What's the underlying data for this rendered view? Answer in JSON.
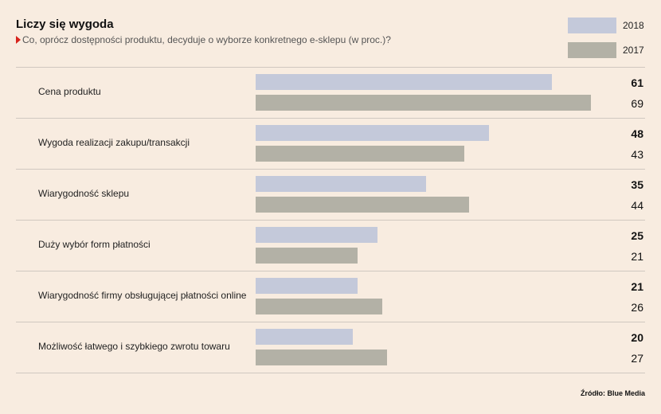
{
  "title": "Liczy się wygoda",
  "subtitle": "Co, oprócz dostępności produktu, decyduje o wyborze konkretnego e-sklepu (w proc.)?",
  "source": "Źródło: Blue Media",
  "colors": {
    "s2018": "#c4c9da",
    "s2017": "#b3b1a6",
    "accent": "#d7231c"
  },
  "chart_data": {
    "type": "bar",
    "orientation": "horizontal",
    "title": "Liczy się wygoda",
    "subtitle": "Co, oprócz dostępności produktu, decyduje o wyborze konkretnego e-sklepu (w proc.)?",
    "categories": [
      "Cena produktu",
      "Wygoda realizacji zakupu/transakcji",
      "Wiarygodność sklepu",
      "Duży wybór form płatności",
      "Wiarygodność firmy obsługującej płatności online",
      "Możliwość łatwego i szybkiego zwrotu towaru"
    ],
    "series": [
      {
        "name": "2018",
        "values": [
          61,
          48,
          35,
          25,
          21,
          20
        ]
      },
      {
        "name": "2017",
        "values": [
          69,
          43,
          44,
          21,
          26,
          27
        ]
      }
    ],
    "xlim": [
      0,
      70
    ],
    "legend": "top-right",
    "grid": false
  }
}
